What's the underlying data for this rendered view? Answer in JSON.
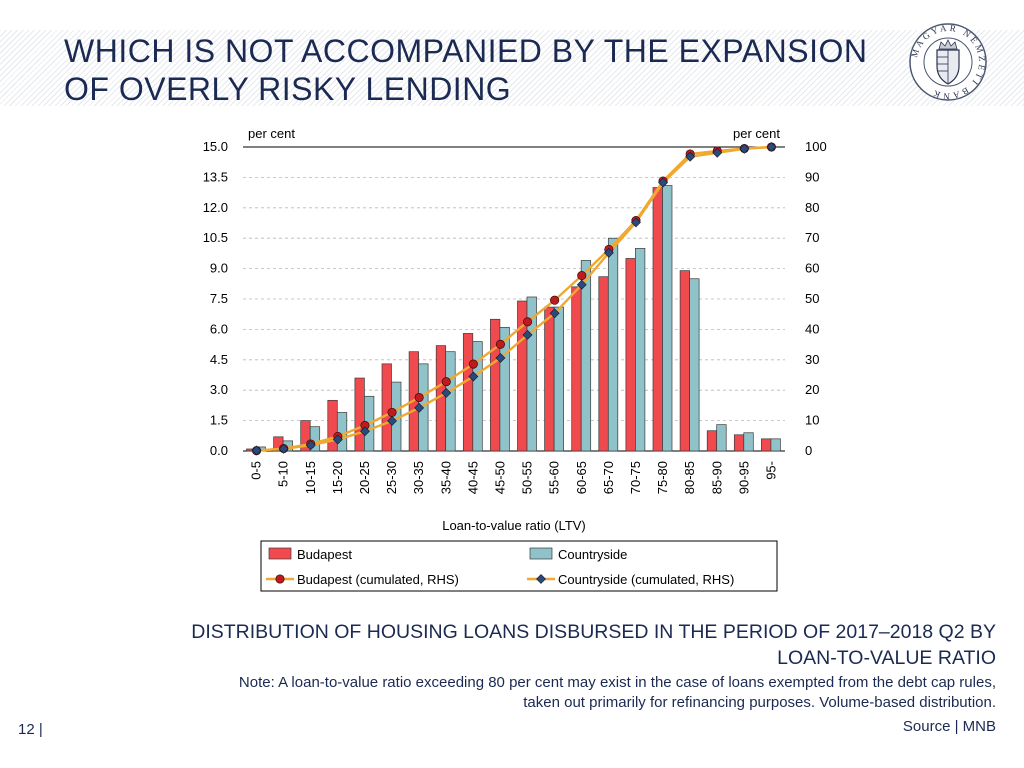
{
  "slide": {
    "title_line1": "WHICH IS NOT ACCOMPANIED BY THE EXPANSION",
    "title_line2": "OF OVERLY RISKY LENDING",
    "logo_text": "MAGYAR NEMZETI BANK",
    "caption_line1": "DISTRIBUTION OF HOUSING LOANS DISBURSED IN THE PERIOD OF 2017–2018 Q2 BY",
    "caption_line2": "LOAN-TO-VALUE RATIO",
    "note_line1": "Note: A loan-to-value ratio exceeding 80 per cent may exist in the case of loans exempted from the debt cap rules,",
    "note_line2": "taken out primarily for refinancing purposes. Volume-based distribution.",
    "page_number": "12 |",
    "source": "Source | MNB"
  },
  "colors": {
    "budapest": "#f04a4e",
    "countryside": "#8fc3c9",
    "budapest_line": "#f0a830",
    "countryside_line": "#f0a830",
    "budapest_marker": "#c0191e",
    "countryside_marker": "#2b4a7a",
    "title": "#1b2a52"
  },
  "chart_data": {
    "type": "bar",
    "categories": [
      "0-5",
      "5-10",
      "10-15",
      "15-20",
      "20-25",
      "25-30",
      "30-35",
      "35-40",
      "40-45",
      "45-50",
      "50-55",
      "55-60",
      "60-65",
      "65-70",
      "70-75",
      "75-80",
      "80-85",
      "85-90",
      "90-95",
      "95-"
    ],
    "xlabel": "Loan-to-value  ratio (LTV)",
    "ylabel_left": "per cent",
    "ylabel_right": "per cent",
    "ylim_left": [
      0,
      15
    ],
    "ylim_right": [
      0,
      100
    ],
    "yticks_left": [
      "0.0",
      "1.5",
      "3.0",
      "4.5",
      "6.0",
      "7.5",
      "9.0",
      "10.5",
      "12.0",
      "13.5",
      "15.0"
    ],
    "yticks_right": [
      "0",
      "10",
      "20",
      "30",
      "40",
      "50",
      "60",
      "70",
      "80",
      "90",
      "100"
    ],
    "legend_position": "bottom",
    "series": [
      {
        "name": "Budapest",
        "kind": "bar",
        "axis": "left",
        "values": [
          0.1,
          0.7,
          1.5,
          2.5,
          3.6,
          4.3,
          4.9,
          5.2,
          5.8,
          6.5,
          7.4,
          7.1,
          8.1,
          8.6,
          9.5,
          13.0,
          8.9,
          1.0,
          0.8,
          0.6
        ]
      },
      {
        "name": "Countryside",
        "kind": "bar",
        "axis": "left",
        "values": [
          0.2,
          0.5,
          1.2,
          1.9,
          2.7,
          3.4,
          4.3,
          4.9,
          5.4,
          6.1,
          7.6,
          7.1,
          9.4,
          10.5,
          10.0,
          13.1,
          8.5,
          1.3,
          0.9,
          0.6
        ]
      },
      {
        "name": "Budapest (cumulated, RHS)",
        "kind": "line",
        "axis": "right",
        "values": [
          0.1,
          0.8,
          2.3,
          4.8,
          8.4,
          12.7,
          17.6,
          22.8,
          28.6,
          35.1,
          42.5,
          49.6,
          57.7,
          66.3,
          75.8,
          88.8,
          97.7,
          98.7,
          99.5,
          100
        ]
      },
      {
        "name": "Countryside (cumulated, RHS)",
        "kind": "line",
        "axis": "right",
        "values": [
          0.2,
          0.7,
          1.9,
          3.8,
          6.5,
          9.9,
          14.2,
          19.1,
          24.5,
          30.6,
          38.2,
          45.3,
          54.7,
          65.2,
          75.2,
          88.3,
          96.8,
          98.1,
          99.4,
          100
        ]
      }
    ]
  }
}
